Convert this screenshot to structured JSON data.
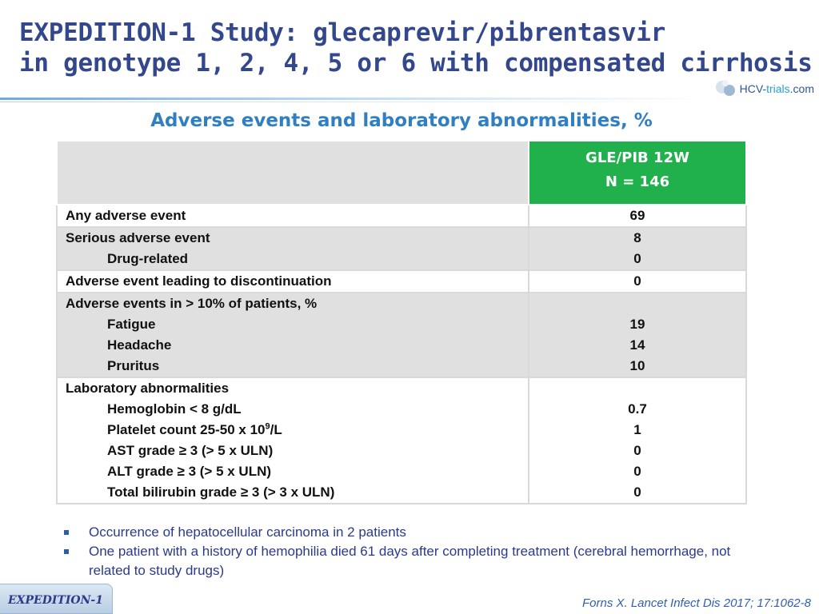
{
  "title": {
    "line1": "EXPEDITION-1 Study: glecaprevir/pibrentasvir",
    "line2": "in genotype 1, 2, 4, 5 or 6 with compensated cirrhosis"
  },
  "logo": {
    "text_main": "HCV-",
    "text_accent": "trials",
    "text_tail": ".com",
    "icon": "molecule-logo-icon"
  },
  "subtitle": "Adverse events and laboratory abnormalities, %",
  "table": {
    "header": {
      "label": "",
      "col_line1": "GLE/PIB 12W",
      "col_line2": "N = 146"
    },
    "rows": [
      {
        "lines": [
          "Any adverse event"
        ],
        "values": [
          "69"
        ]
      },
      {
        "lines": [
          "Serious adverse event",
          "Drug-related"
        ],
        "values": [
          "8",
          "0"
        ]
      },
      {
        "lines": [
          "Adverse event leading to discontinuation"
        ],
        "values": [
          "0"
        ]
      },
      {
        "lines": [
          "Adverse events in > 10% of patients, %",
          "Fatigue",
          "Headache",
          "Pruritus"
        ],
        "values": [
          "",
          "19",
          "14",
          "10"
        ]
      },
      {
        "lines": [
          "Laboratory abnormalities",
          "Hemoglobin  < 8 g/dL",
          "Platelet count 25-50 x 10",
          "AST grade ≥ 3 (> 5 x ULN)",
          "ALT grade ≥ 3 (> 5 x ULN)",
          "Total bilirubin grade ≥ 3 (> 3 x ULN)"
        ],
        "values": [
          "",
          "0.7",
          "1",
          "0",
          "0",
          "0"
        ],
        "platelet_superscript": "9",
        "platelet_suffix": "/L"
      }
    ]
  },
  "bullets": [
    "Occurrence of hepatocellular carcinoma in 2 patients",
    "One patient with a history of hemophilia died 61 days after completing treatment (cerebral hemorrhage, not related to study drugs)"
  ],
  "footer_tag": "EXPEDITION-1",
  "citation": "Forns X. Lancet Infect Dis 2017; 17:1062-8",
  "colors": {
    "title": "#33478c",
    "subtitle": "#2f7fc1",
    "header_green": "#21b14c",
    "row_gray": "#e0e0e0",
    "bullet_text": "#2b3a8a"
  }
}
